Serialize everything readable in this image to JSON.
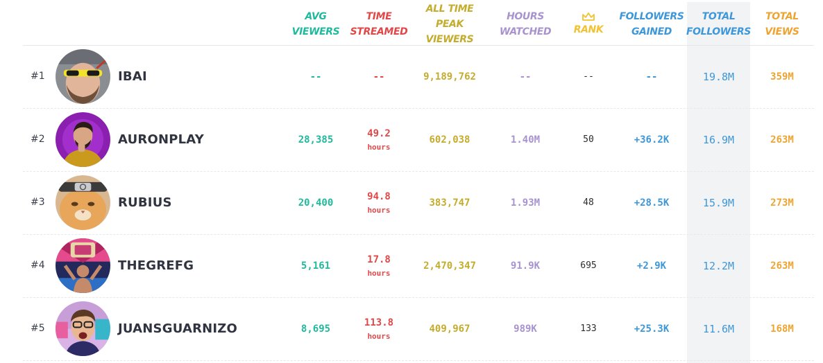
{
  "colors": {
    "avg_viewers": "#21b99c",
    "time_streamed": "#e04848",
    "peak_viewers": "#c4ac2c",
    "hours_watched": "#a893cf",
    "rank": "#f2c230",
    "followers_gained": "#3d97d8",
    "total_followers": "#3d97d8",
    "total_views": "#eda432",
    "highlight_column": "#f2f3f5"
  },
  "headers": {
    "avg_viewers": "AVG\nVIEWERS",
    "time_streamed": "TIME\nSTREAMED",
    "peak_viewers": "ALL TIME PEAK\nVIEWERS",
    "hours_watched": "HOURS\nWATCHED",
    "rank_icon": "crown-icon",
    "rank": "RANK",
    "followers_gained": "FOLLOWERS\nGAINED",
    "total_followers": "TOTAL\nFOLLOWERS",
    "total_views": "TOTAL\nVIEWS"
  },
  "rows": [
    {
      "position": "#1",
      "name": "IBAI",
      "avg": "--",
      "time": "--",
      "time_unit": "",
      "peak": "9,189,762",
      "hours": "--",
      "rank": "--",
      "gained": "--",
      "total_followers": "19.8M",
      "views": "359M"
    },
    {
      "position": "#2",
      "name": "AURONPLAY",
      "avg": "28,385",
      "time": "49.2",
      "time_unit": "hours",
      "peak": "602,038",
      "hours": "1.40M",
      "rank": "50",
      "gained": "+36.2K",
      "total_followers": "16.9M",
      "views": "263M"
    },
    {
      "position": "#3",
      "name": "RUBIUS",
      "avg": "20,400",
      "time": "94.8",
      "time_unit": "hours",
      "peak": "383,747",
      "hours": "1.93M",
      "rank": "48",
      "gained": "+28.5K",
      "total_followers": "15.9M",
      "views": "273M"
    },
    {
      "position": "#4",
      "name": "THEGREFG",
      "avg": "5,161",
      "time": "17.8",
      "time_unit": "hours",
      "peak": "2,470,347",
      "hours": "91.9K",
      "rank": "695",
      "gained": "+2.9K",
      "total_followers": "12.2M",
      "views": "263M"
    },
    {
      "position": "#5",
      "name": "JUANSGUARNIZO",
      "avg": "8,695",
      "time": "113.8",
      "time_unit": "hours",
      "peak": "409,967",
      "hours": "989K",
      "rank": "133",
      "gained": "+25.3K",
      "total_followers": "11.6M",
      "views": "168M"
    }
  ]
}
